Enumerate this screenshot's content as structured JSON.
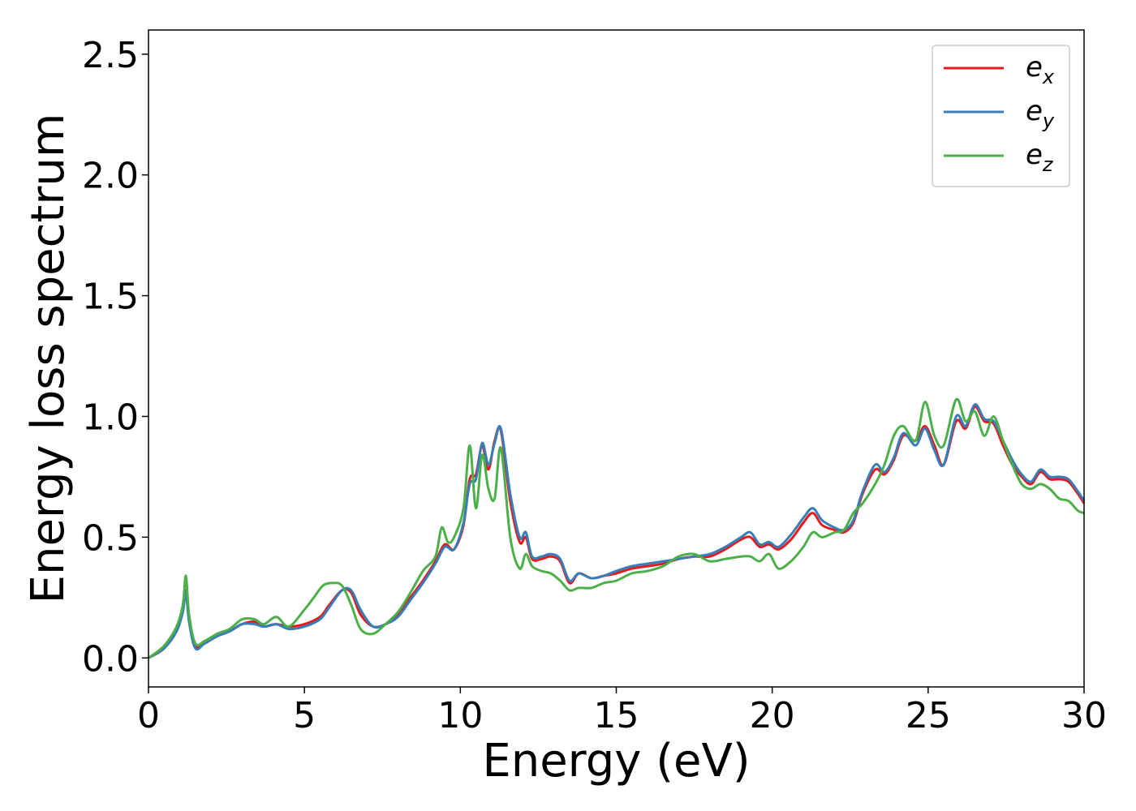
{
  "chart_data": {
    "type": "line",
    "xlabel": "Energy (eV)",
    "ylabel": "Energy loss spectrum",
    "xlim": [
      0,
      30
    ],
    "ylim": [
      -0.12,
      2.6
    ],
    "xticks": [
      0,
      5,
      10,
      15,
      20,
      25,
      30
    ],
    "xtick_labels": [
      "0",
      "5",
      "10",
      "15",
      "20",
      "25",
      "30"
    ],
    "yticks": [
      0.0,
      0.5,
      1.0,
      1.5,
      2.0,
      2.5
    ],
    "ytick_labels": [
      "0.0",
      "0.5",
      "1.0",
      "1.5",
      "2.0",
      "2.5"
    ],
    "grid": false,
    "legend_position": "top-right",
    "series": [
      {
        "name": "e",
        "sub": "x",
        "color": "#e41a1c",
        "x": [
          0,
          0.5,
          0.9,
          1.1,
          1.2,
          1.3,
          1.5,
          1.8,
          2.2,
          2.6,
          3.0,
          3.4,
          3.7,
          4.1,
          4.5,
          5.0,
          5.5,
          5.8,
          6.2,
          6.5,
          6.8,
          7.2,
          7.6,
          8.0,
          8.4,
          8.8,
          9.2,
          9.5,
          9.8,
          10.1,
          10.3,
          10.5,
          10.7,
          10.9,
          11.1,
          11.3,
          11.6,
          11.9,
          12.1,
          12.3,
          12.6,
          12.9,
          13.2,
          13.5,
          13.8,
          14.2,
          14.6,
          15.0,
          15.5,
          16.0,
          16.5,
          17.0,
          17.5,
          18.0,
          18.5,
          19.0,
          19.3,
          19.6,
          19.9,
          20.2,
          20.6,
          21.0,
          21.3,
          21.6,
          22.0,
          22.3,
          22.6,
          22.9,
          23.3,
          23.6,
          23.9,
          24.2,
          24.6,
          24.9,
          25.2,
          25.5,
          25.9,
          26.2,
          26.5,
          26.8,
          27.1,
          27.4,
          27.7,
          28.0,
          28.3,
          28.6,
          28.9,
          29.2,
          29.5,
          29.8,
          30.0
        ],
        "y": [
          0.0,
          0.04,
          0.12,
          0.2,
          0.28,
          0.16,
          0.05,
          0.06,
          0.09,
          0.11,
          0.14,
          0.15,
          0.13,
          0.14,
          0.13,
          0.14,
          0.17,
          0.22,
          0.28,
          0.27,
          0.18,
          0.13,
          0.14,
          0.18,
          0.25,
          0.32,
          0.4,
          0.47,
          0.45,
          0.55,
          0.74,
          0.76,
          0.88,
          0.78,
          0.9,
          0.94,
          0.65,
          0.48,
          0.5,
          0.41,
          0.41,
          0.42,
          0.4,
          0.31,
          0.35,
          0.33,
          0.34,
          0.35,
          0.37,
          0.38,
          0.39,
          0.41,
          0.42,
          0.42,
          0.45,
          0.49,
          0.5,
          0.46,
          0.47,
          0.45,
          0.49,
          0.56,
          0.6,
          0.55,
          0.53,
          0.52,
          0.56,
          0.68,
          0.78,
          0.76,
          0.82,
          0.92,
          0.9,
          0.96,
          0.88,
          0.8,
          0.98,
          0.95,
          1.04,
          0.98,
          0.97,
          0.88,
          0.8,
          0.75,
          0.72,
          0.77,
          0.74,
          0.74,
          0.73,
          0.68,
          0.64
        ]
      },
      {
        "name": "e",
        "sub": "y",
        "color": "#377eb8",
        "x": [
          0,
          0.5,
          0.9,
          1.1,
          1.2,
          1.3,
          1.5,
          1.8,
          2.2,
          2.6,
          3.0,
          3.4,
          3.7,
          4.1,
          4.5,
          5.0,
          5.5,
          5.8,
          6.2,
          6.5,
          6.8,
          7.2,
          7.6,
          8.0,
          8.4,
          8.8,
          9.2,
          9.5,
          9.8,
          10.1,
          10.3,
          10.5,
          10.7,
          10.9,
          11.1,
          11.3,
          11.6,
          11.9,
          12.1,
          12.3,
          12.6,
          12.9,
          13.2,
          13.5,
          13.8,
          14.2,
          14.6,
          15.0,
          15.5,
          16.0,
          16.5,
          17.0,
          17.5,
          18.0,
          18.5,
          19.0,
          19.3,
          19.6,
          19.9,
          20.2,
          20.6,
          21.0,
          21.3,
          21.6,
          22.0,
          22.3,
          22.6,
          22.9,
          23.3,
          23.6,
          23.9,
          24.2,
          24.6,
          24.9,
          25.2,
          25.5,
          25.9,
          26.2,
          26.5,
          26.8,
          27.1,
          27.4,
          27.7,
          28.0,
          28.3,
          28.6,
          28.9,
          29.2,
          29.5,
          29.8,
          30.0
        ],
        "y": [
          0.0,
          0.04,
          0.11,
          0.19,
          0.27,
          0.15,
          0.04,
          0.06,
          0.09,
          0.11,
          0.14,
          0.14,
          0.13,
          0.14,
          0.12,
          0.13,
          0.16,
          0.21,
          0.28,
          0.28,
          0.2,
          0.13,
          0.14,
          0.17,
          0.24,
          0.31,
          0.39,
          0.46,
          0.45,
          0.56,
          0.72,
          0.74,
          0.89,
          0.8,
          0.89,
          0.95,
          0.68,
          0.5,
          0.52,
          0.42,
          0.42,
          0.43,
          0.41,
          0.32,
          0.35,
          0.33,
          0.34,
          0.36,
          0.38,
          0.39,
          0.4,
          0.41,
          0.42,
          0.43,
          0.46,
          0.5,
          0.52,
          0.47,
          0.48,
          0.46,
          0.51,
          0.58,
          0.62,
          0.57,
          0.54,
          0.53,
          0.57,
          0.69,
          0.8,
          0.77,
          0.83,
          0.93,
          0.88,
          0.95,
          0.86,
          0.8,
          1.0,
          0.96,
          1.05,
          0.99,
          0.98,
          0.9,
          0.82,
          0.76,
          0.73,
          0.78,
          0.75,
          0.75,
          0.74,
          0.69,
          0.65
        ]
      },
      {
        "name": "e",
        "sub": "z",
        "color": "#4daf4a",
        "x": [
          0,
          0.5,
          0.9,
          1.1,
          1.2,
          1.3,
          1.5,
          1.8,
          2.2,
          2.6,
          3.0,
          3.4,
          3.7,
          4.1,
          4.5,
          5.0,
          5.3,
          5.6,
          5.9,
          6.2,
          6.5,
          6.8,
          7.2,
          7.6,
          8.0,
          8.4,
          8.8,
          9.2,
          9.4,
          9.6,
          9.8,
          10.1,
          10.3,
          10.5,
          10.7,
          10.9,
          11.1,
          11.3,
          11.6,
          11.9,
          12.1,
          12.3,
          12.6,
          12.9,
          13.2,
          13.5,
          13.8,
          14.2,
          14.6,
          15.0,
          15.5,
          16.0,
          16.5,
          17.0,
          17.5,
          18.0,
          18.5,
          19.0,
          19.3,
          19.6,
          19.9,
          20.2,
          20.6,
          21.0,
          21.3,
          21.6,
          22.0,
          22.3,
          22.6,
          22.9,
          23.3,
          23.6,
          23.9,
          24.2,
          24.6,
          24.9,
          25.2,
          25.5,
          25.9,
          26.2,
          26.5,
          26.8,
          27.1,
          27.4,
          27.7,
          28.0,
          28.3,
          28.6,
          28.9,
          29.2,
          29.5,
          29.8,
          30.0
        ],
        "y": [
          0.0,
          0.05,
          0.13,
          0.22,
          0.34,
          0.18,
          0.06,
          0.07,
          0.1,
          0.12,
          0.16,
          0.16,
          0.14,
          0.17,
          0.13,
          0.2,
          0.25,
          0.3,
          0.31,
          0.3,
          0.22,
          0.12,
          0.1,
          0.14,
          0.19,
          0.27,
          0.36,
          0.42,
          0.54,
          0.48,
          0.5,
          0.62,
          0.88,
          0.62,
          0.84,
          0.7,
          0.66,
          0.87,
          0.5,
          0.37,
          0.43,
          0.38,
          0.36,
          0.35,
          0.32,
          0.28,
          0.29,
          0.29,
          0.31,
          0.32,
          0.35,
          0.36,
          0.38,
          0.42,
          0.43,
          0.4,
          0.41,
          0.42,
          0.42,
          0.4,
          0.43,
          0.37,
          0.4,
          0.46,
          0.52,
          0.5,
          0.52,
          0.53,
          0.6,
          0.64,
          0.72,
          0.8,
          0.92,
          0.96,
          0.9,
          1.06,
          0.92,
          0.88,
          1.07,
          0.98,
          1.02,
          0.92,
          1.0,
          0.9,
          0.8,
          0.72,
          0.7,
          0.72,
          0.7,
          0.66,
          0.65,
          0.61,
          0.6
        ]
      }
    ]
  }
}
